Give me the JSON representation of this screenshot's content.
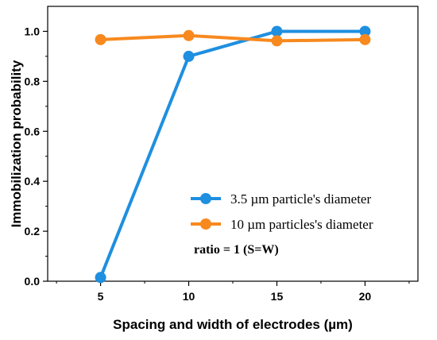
{
  "chart_data": {
    "type": "line",
    "xlabel": "Spacing and width of electrodes (µm)",
    "ylabel": "Immobilization probability",
    "xlim": [
      2,
      23
    ],
    "ylim": [
      0,
      1.1
    ],
    "x_ticks": [
      5,
      10,
      15,
      20
    ],
    "x_tick_labels": [
      "5",
      "10",
      "15",
      "20"
    ],
    "y_ticks": [
      0.0,
      0.2,
      0.4,
      0.6,
      0.8,
      1.0
    ],
    "y_tick_labels": [
      "0.0",
      "0.2",
      "0.4",
      "0.6",
      "0.8",
      "1.0"
    ],
    "grid": false,
    "legend_position": "bottom-right",
    "series": [
      {
        "name": "3.5 µm particle's diameter",
        "color": "#1f8fe0",
        "x": [
          5,
          10,
          15,
          20
        ],
        "y": [
          0.015,
          0.9,
          1.0,
          1.0
        ]
      },
      {
        "name": "10 µm particles's diameter",
        "color": "#f7891e",
        "x": [
          5,
          10,
          15,
          20
        ],
        "y": [
          0.967,
          0.983,
          0.962,
          0.967
        ]
      }
    ],
    "annotation": "ratio = 1 (S=W)"
  }
}
